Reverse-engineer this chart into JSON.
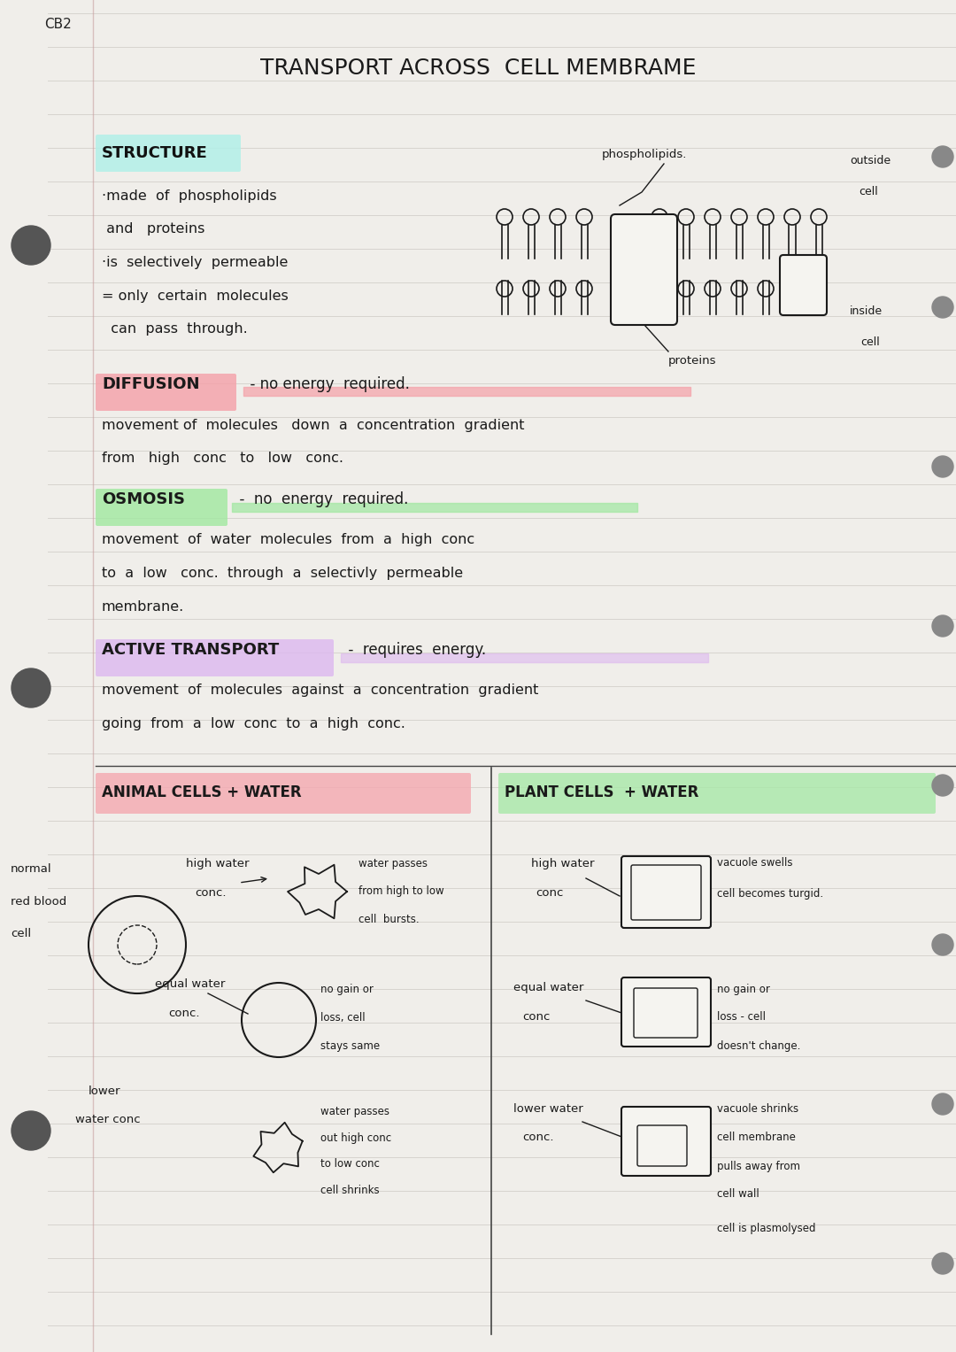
{
  "bg_color": "#f0eeea",
  "page_color": "#f5f4f0",
  "line_color": "#d0cdc8",
  "title": "TRANSPORT ACROSS  CELL MEMBRAME",
  "ref": "CB2",
  "structure_label": "STRUCTURE",
  "structure_highlight": "#b2f0e8",
  "diffusion_label": "DIFFUSION",
  "diffusion_highlight": "#f5a0a8",
  "osmosis_label": "OSMOSIS",
  "osmosis_highlight": "#a0e8a0",
  "active_label": "ACTIVE TRANSPORT",
  "active_highlight": "#ddb8f0",
  "animal_label": "ANIMAL CELLS + WATER",
  "animal_highlight": "#f5a8b0",
  "plant_label": "PLANT CELLS  + WATER",
  "plant_highlight": "#a8e8a8"
}
